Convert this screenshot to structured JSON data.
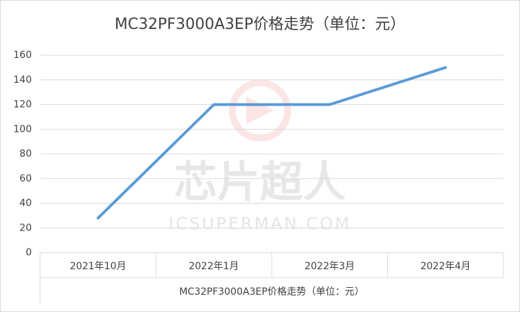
{
  "chart_data": {
    "type": "line",
    "title": "MC32PF3000A3EP价格走势（单位：元）",
    "x_label": "MC32PF3000A3EP价格走势（单位：元）",
    "categories": [
      "2021年10月",
      "2022年1月",
      "2022年3月",
      "2022年4月"
    ],
    "series": [
      {
        "name": "MC32PF3000A3EP",
        "color": "#5b9bd5",
        "values": [
          28,
          120,
          120,
          150
        ]
      }
    ],
    "ylim": [
      0,
      160
    ],
    "yticks": [
      0,
      20,
      40,
      60,
      80,
      100,
      120,
      140,
      160
    ],
    "grid": true,
    "watermark": [
      "芯片超人",
      "ICSUPERMAN.COM"
    ]
  }
}
